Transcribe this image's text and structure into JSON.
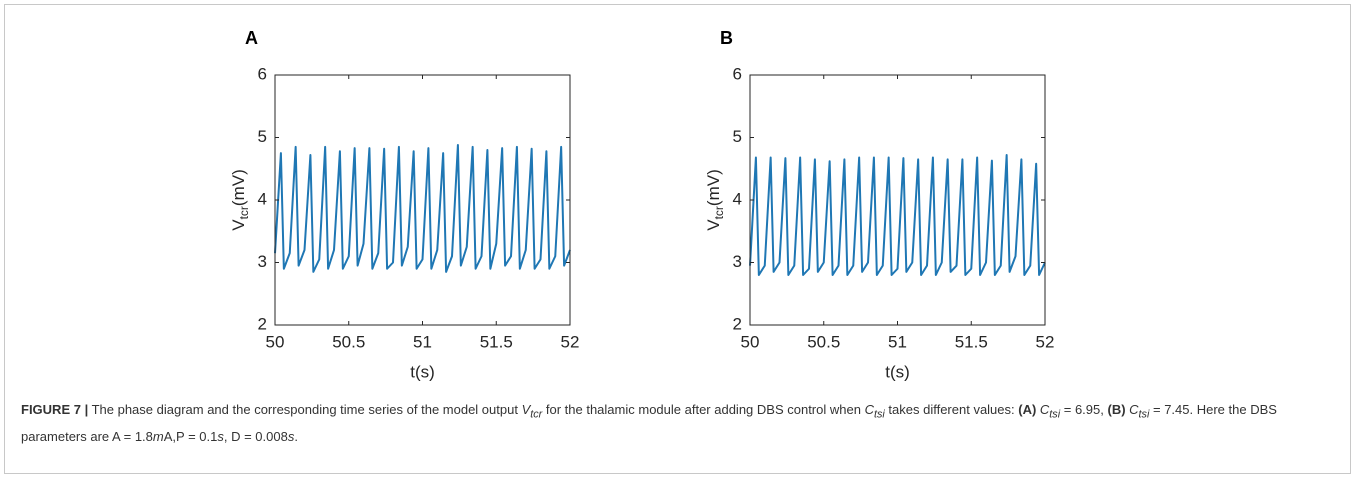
{
  "chart_data": [
    {
      "type": "line",
      "panel": "A",
      "xlabel": "t(s)",
      "ylabel": "V",
      "ylabel_sub": "tcr",
      "ylabel_unit": "(mV)",
      "xlim": [
        50,
        52
      ],
      "xticks": [
        50,
        50.5,
        51,
        51.5,
        52
      ],
      "ylim": [
        2,
        6
      ],
      "yticks": [
        2,
        3,
        4,
        5,
        6
      ],
      "x": [
        50,
        50.04,
        50.06,
        50.1,
        50.14,
        50.16,
        50.2,
        50.24,
        50.26,
        50.3,
        50.34,
        50.36,
        50.4,
        50.44,
        50.46,
        50.5,
        50.54,
        50.56,
        50.6,
        50.64,
        50.66,
        50.7,
        50.74,
        50.76,
        50.8,
        50.84,
        50.86,
        50.9,
        50.94,
        50.96,
        51,
        51.04,
        51.06,
        51.1,
        51.14,
        51.16,
        51.2,
        51.24,
        51.26,
        51.3,
        51.34,
        51.36,
        51.4,
        51.44,
        51.46,
        51.5,
        51.54,
        51.56,
        51.6,
        51.64,
        51.66,
        51.7,
        51.74,
        51.76,
        51.8,
        51.84,
        51.86,
        51.9,
        51.94,
        51.96,
        52
      ],
      "series": [
        {
          "color": "#1f77b4",
          "values": [
            3.15,
            4.75,
            2.9,
            3.15,
            4.85,
            2.95,
            3.2,
            4.72,
            2.85,
            3.05,
            4.85,
            2.9,
            3.2,
            4.78,
            2.9,
            3.1,
            4.83,
            2.95,
            3.3,
            4.83,
            2.9,
            3.15,
            4.82,
            2.9,
            3.0,
            4.85,
            2.95,
            3.25,
            4.78,
            2.9,
            3.05,
            4.83,
            2.9,
            3.2,
            4.75,
            2.85,
            3.1,
            4.88,
            2.95,
            3.25,
            4.85,
            2.9,
            3.1,
            4.8,
            2.9,
            3.3,
            4.83,
            2.95,
            3.1,
            4.85,
            2.9,
            3.2,
            4.82,
            2.9,
            3.05,
            4.78,
            2.9,
            3.1,
            4.85,
            2.95,
            3.2
          ]
        }
      ]
    },
    {
      "type": "line",
      "panel": "B",
      "xlabel": "t(s)",
      "ylabel": "V",
      "ylabel_sub": "tcr",
      "ylabel_unit": "(mV)",
      "xlim": [
        50,
        52
      ],
      "xticks": [
        50,
        50.5,
        51,
        51.5,
        52
      ],
      "ylim": [
        2,
        6
      ],
      "yticks": [
        2,
        3,
        4,
        5,
        6
      ],
      "x": [
        50,
        50.04,
        50.06,
        50.1,
        50.14,
        50.16,
        50.2,
        50.24,
        50.26,
        50.3,
        50.34,
        50.36,
        50.4,
        50.44,
        50.46,
        50.5,
        50.54,
        50.56,
        50.6,
        50.64,
        50.66,
        50.7,
        50.74,
        50.76,
        50.8,
        50.84,
        50.86,
        50.9,
        50.94,
        50.96,
        51,
        51.04,
        51.06,
        51.1,
        51.14,
        51.16,
        51.2,
        51.24,
        51.26,
        51.3,
        51.34,
        51.36,
        51.4,
        51.44,
        51.46,
        51.5,
        51.54,
        51.56,
        51.6,
        51.64,
        51.66,
        51.7,
        51.74,
        51.76,
        51.8,
        51.84,
        51.86,
        51.9,
        51.94,
        51.96,
        52
      ],
      "series": [
        {
          "color": "#1f77b4",
          "values": [
            2.95,
            4.68,
            2.8,
            2.95,
            4.68,
            2.85,
            3.0,
            4.67,
            2.8,
            2.95,
            4.68,
            2.8,
            2.9,
            4.65,
            2.85,
            3.0,
            4.62,
            2.8,
            2.95,
            4.65,
            2.8,
            2.95,
            4.68,
            2.85,
            3.0,
            4.68,
            2.8,
            2.95,
            4.68,
            2.8,
            2.9,
            4.67,
            2.85,
            3.0,
            4.65,
            2.8,
            2.95,
            4.68,
            2.8,
            3.0,
            4.65,
            2.85,
            2.95,
            4.65,
            2.8,
            2.9,
            4.68,
            2.8,
            3.0,
            4.63,
            2.8,
            2.95,
            4.72,
            2.85,
            3.1,
            4.65,
            2.8,
            2.95,
            4.58,
            2.8,
            3.0
          ]
        }
      ]
    }
  ],
  "caption": {
    "label": "FIGURE 7 |",
    "parts": [
      " The phase diagram and the corresponding time series of the model output ",
      "V",
      "tcr",
      " for the thalamic module after adding DBS control when ",
      "C",
      "tsi",
      " takes different values: ",
      "(A)",
      " C",
      "tsi",
      " = 6.95, ",
      "(B)",
      " C",
      "tsi",
      " = 7.45. Here the DBS parameters are A = 1.8",
      "m",
      "A,P = 0.1",
      "s",
      ", D = 0.008",
      "s",
      "."
    ]
  }
}
